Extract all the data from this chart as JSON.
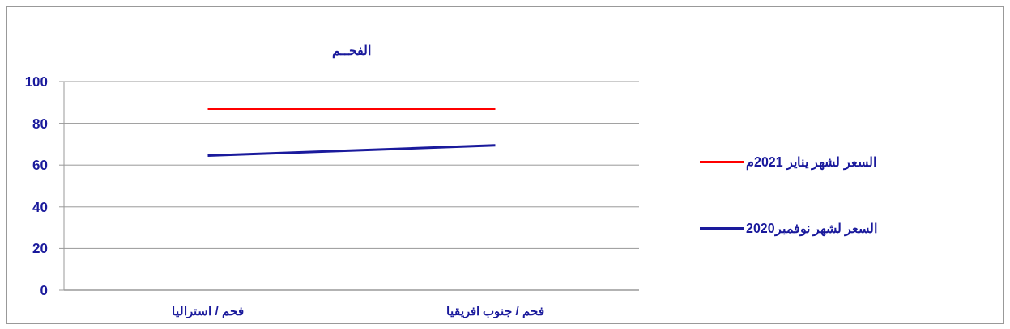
{
  "chart_data": {
    "type": "line",
    "title": "الفحــم",
    "categories": [
      "فحم / استراليا",
      "فحم / جنوب افريقيا"
    ],
    "series": [
      {
        "name": "السعر لشهر يناير 2021م",
        "color": "#ff0000",
        "values": [
          87,
          87
        ]
      },
      {
        "name": "السعر لشهر نوفمبر2020",
        "color": "#1a1a9c",
        "values": [
          64.5,
          69.5
        ]
      }
    ],
    "ylim": [
      0,
      100
    ],
    "yticks": [
      0,
      20,
      40,
      60,
      80,
      100
    ],
    "grid": "y",
    "legend": "right",
    "marker": "none",
    "line_style": "solid"
  }
}
